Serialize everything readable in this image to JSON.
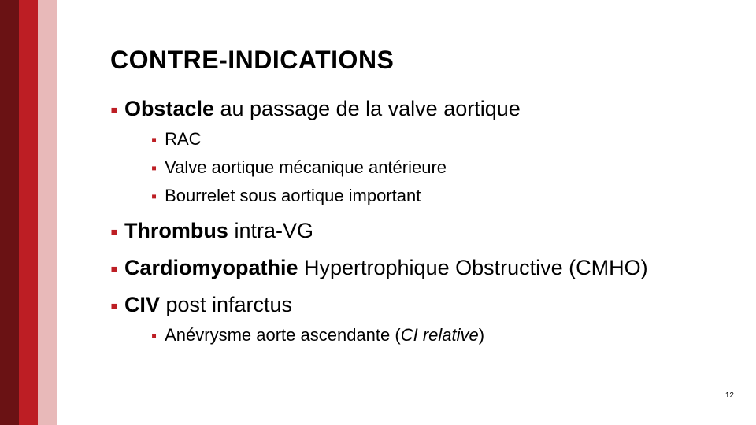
{
  "colors": {
    "stripe_dark": "#6a1214",
    "stripe_mid": "#bd1e24",
    "stripe_light": "#e8b9b9",
    "bullet": "#bd1e24",
    "text": "#000000",
    "background": "#ffffff"
  },
  "typography": {
    "title_fontsize": 32,
    "l1_fontsize": 27,
    "l2_fontsize": 22,
    "font_family": "Arial"
  },
  "title": "CONTRE-INDICATIONS",
  "items": {
    "l1_0_bold": "Obstacle",
    "l1_0_rest": " au passage de la valve aortique",
    "l2_0": "RAC",
    "l2_1": "Valve aortique mécanique antérieure",
    "l2_2": "Bourrelet sous aortique important",
    "l1_1_bold": "Thrombus",
    "l1_1_rest": " intra-VG",
    "l1_2_bold": "Cardiomyopathie",
    "l1_2_rest": " Hypertrophique Obstructive (CMHO)",
    "l1_3_bold": "CIV",
    "l1_3_rest": " post infarctus",
    "l2_3a": "Anévrysme aorte ascendante (",
    "l2_3b": "CI relative",
    "l2_3c": ")"
  },
  "page_number": "12"
}
